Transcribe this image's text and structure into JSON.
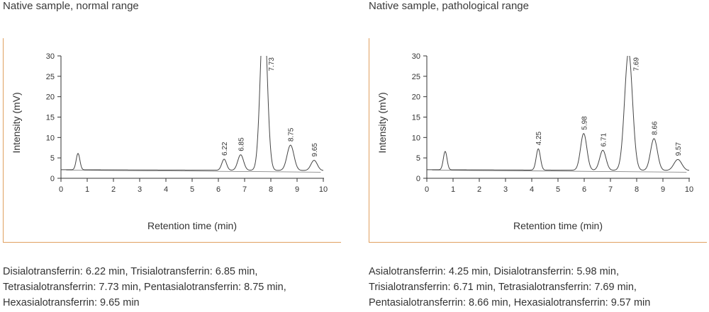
{
  "chart_data": [
    {
      "type": "line",
      "title": "Native sample, normal range",
      "xlabel": "Retention time (min)",
      "ylabel": "Intensity (mV)",
      "xlim": [
        0,
        10
      ],
      "ylim": [
        0,
        30
      ],
      "x_ticks": [
        "0",
        "1",
        "2",
        "3",
        "4",
        "5",
        "6",
        "7",
        "8",
        "9",
        "10"
      ],
      "y_ticks": [
        "0",
        "5",
        "10",
        "15",
        "20",
        "25",
        "30"
      ],
      "baseline": 2,
      "peaks": [
        {
          "x": 0.65,
          "height": 4.0,
          "width": 0.07,
          "label": ""
        },
        {
          "x": 6.22,
          "height": 2.7,
          "width": 0.09,
          "label": "6.22"
        },
        {
          "x": 6.85,
          "height": 3.8,
          "width": 0.11,
          "label": "6.85"
        },
        {
          "x": 7.73,
          "height": 40.0,
          "width": 0.13,
          "label": "7.73"
        },
        {
          "x": 8.75,
          "height": 6.2,
          "width": 0.13,
          "label": "8.75"
        },
        {
          "x": 9.65,
          "height": 2.5,
          "width": 0.12,
          "label": "9.65"
        }
      ],
      "caption": [
        "Disialotransferrin: 6.22 min, Trisialotransferrin: 6.85 min,",
        "Tetrasialotransferrin: 7.73 min, Pentasialotransferrin: 8.75 min,",
        "Hexasialotransferrin: 9.65 min"
      ]
    },
    {
      "type": "line",
      "title": "Native sample, pathological range",
      "xlabel": "Retention time (min)",
      "ylabel": "Intensity (mV)",
      "xlim": [
        0,
        10
      ],
      "ylim": [
        0,
        30
      ],
      "x_ticks": [
        "0",
        "1",
        "2",
        "3",
        "4",
        "5",
        "6",
        "7",
        "8",
        "9",
        "10"
      ],
      "y_ticks": [
        "0",
        "5",
        "10",
        "15",
        "20",
        "25",
        "30"
      ],
      "baseline": 2,
      "peaks": [
        {
          "x": 0.7,
          "height": 4.5,
          "width": 0.07,
          "label": ""
        },
        {
          "x": 4.25,
          "height": 5.2,
          "width": 0.08,
          "label": "4.25"
        },
        {
          "x": 5.98,
          "height": 9.0,
          "width": 0.12,
          "label": "5.98"
        },
        {
          "x": 6.71,
          "height": 4.9,
          "width": 0.12,
          "label": "6.71"
        },
        {
          "x": 7.69,
          "height": 29.0,
          "width": 0.15,
          "label": "7.69"
        },
        {
          "x": 8.66,
          "height": 7.8,
          "width": 0.13,
          "label": "8.66"
        },
        {
          "x": 9.57,
          "height": 2.7,
          "width": 0.15,
          "label": "9.57"
        }
      ],
      "caption": [
        "Asialotransferrin: 4.25 min, Disialotransferrin: 5.98 min,",
        "Trisialotransferrin: 6.71 min, Tetrasialotransferrin: 7.69 min,",
        "Pentasialotransferrin: 8.66 min, Hexasialotransferrin: 9.57 min"
      ]
    }
  ]
}
